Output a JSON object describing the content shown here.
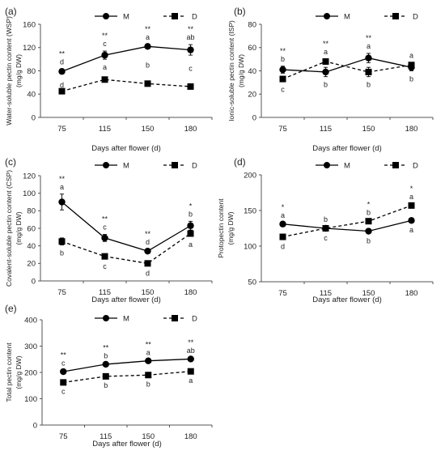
{
  "chart_data": [
    {
      "type": "line",
      "panel": "(a)",
      "ylabel": [
        "Water-soluble pectin content (WSP)",
        "(mg/g DW)"
      ],
      "xlabel": "Days after flower (d)",
      "categories": [
        "75",
        "115",
        "150",
        "180"
      ],
      "ylim": [
        0,
        160
      ],
      "yticks": [
        0,
        40,
        80,
        120,
        160
      ],
      "legend_position": "top-right",
      "series": [
        {
          "name": "M",
          "style": "solid",
          "marker": "circle",
          "values": [
            79,
            107,
            122,
            116
          ],
          "errors": [
            4,
            7,
            3,
            9
          ],
          "labels": [
            "d",
            "c",
            "a",
            "ab"
          ],
          "label_side": "above"
        },
        {
          "name": "D",
          "style": "dashed",
          "marker": "square",
          "values": [
            45,
            65,
            58,
            53
          ],
          "errors": [
            2,
            2,
            2,
            2
          ],
          "labels": [
            "d",
            "a",
            "b",
            "c"
          ],
          "label_side": "below_M"
        }
      ],
      "significance": [
        "**",
        "**",
        "**",
        "**"
      ]
    },
    {
      "type": "line",
      "panel": "(b)",
      "ylabel": [
        "Ionic-soluble pectin content (ISP)",
        "(mg/g DW)"
      ],
      "xlabel": "Days after flower (d)",
      "categories": [
        "75",
        "115",
        "150",
        "180"
      ],
      "ylim": [
        0,
        80
      ],
      "yticks": [
        0,
        20,
        40,
        60,
        80
      ],
      "legend_position": "top-right",
      "series": [
        {
          "name": "M",
          "style": "solid",
          "marker": "circle",
          "values": [
            41,
            39,
            51,
            43
          ],
          "errors": [
            3,
            4,
            4,
            3
          ],
          "labels": [
            "b",
            "b",
            "a",
            "b"
          ],
          "label_side": "mixed"
        },
        {
          "name": "D",
          "style": "dashed",
          "marker": "square",
          "values": [
            33,
            48,
            39,
            45
          ],
          "errors": [
            2,
            2,
            4,
            2
          ],
          "labels": [
            "c",
            "a",
            "b",
            "a"
          ],
          "label_side": "mixed"
        }
      ],
      "significance": [
        "**",
        "**",
        "**",
        ""
      ]
    },
    {
      "type": "line",
      "panel": "(c)",
      "ylabel": [
        "Covalent-soluble pectin content (CSP)",
        "(mg/g DW)"
      ],
      "xlabel": "Days after flower (d)",
      "categories": [
        "75",
        "115",
        "150",
        "180"
      ],
      "ylim": [
        0,
        120
      ],
      "yticks": [
        0,
        20,
        40,
        60,
        80,
        100,
        120
      ],
      "legend_position": "top-right",
      "series": [
        {
          "name": "M",
          "style": "solid",
          "marker": "circle",
          "values": [
            90,
            49,
            34,
            63
          ],
          "errors": [
            9,
            4,
            2,
            5
          ],
          "labels": [
            "a",
            "c",
            "d",
            "b"
          ],
          "label_side": "above"
        },
        {
          "name": "D",
          "style": "dashed",
          "marker": "square",
          "values": [
            45,
            28,
            20,
            54
          ],
          "errors": [
            4,
            2,
            2,
            3
          ],
          "labels": [
            "b",
            "c",
            "d",
            "a"
          ],
          "label_side": "below"
        }
      ],
      "significance": [
        "**",
        "**",
        "**",
        "*"
      ]
    },
    {
      "type": "line",
      "panel": "(d)",
      "ylabel": [
        "Protopectin content",
        "(mg/g DW)"
      ],
      "xlabel": "Days after flower (d)",
      "categories": [
        "75",
        "115",
        "150",
        "180"
      ],
      "ylim": [
        50,
        200
      ],
      "yticks": [
        50,
        100,
        150,
        200
      ],
      "legend_position": "top-right",
      "series": [
        {
          "name": "M",
          "style": "solid",
          "marker": "circle",
          "values": [
            131,
            125,
            121,
            136
          ],
          "errors": [
            2,
            2,
            2,
            2
          ],
          "labels": [
            "a",
            "b",
            "b",
            "a"
          ],
          "label_side": "mixed"
        },
        {
          "name": "D",
          "style": "dashed",
          "marker": "square",
          "values": [
            113,
            125,
            135,
            157
          ],
          "errors": [
            2,
            2,
            2,
            2
          ],
          "labels": [
            "d",
            "c",
            "b",
            "a"
          ],
          "label_side": "mixed"
        }
      ],
      "significance": [
        "*",
        "",
        "*",
        "*"
      ]
    },
    {
      "type": "line",
      "panel": "(e)",
      "ylabel": [
        "Total pectin content",
        "(mg/g DW)"
      ],
      "xlabel": "Days after flower (d)",
      "categories": [
        "75",
        "115",
        "150",
        "180"
      ],
      "ylim": [
        0,
        400
      ],
      "yticks": [
        0,
        100,
        200,
        300,
        400
      ],
      "legend_position": "top-right",
      "series": [
        {
          "name": "M",
          "style": "solid",
          "marker": "circle",
          "values": [
            203,
            231,
            244,
            251
          ],
          "errors": [
            4,
            4,
            4,
            4
          ],
          "labels": [
            "c",
            "b",
            "a",
            "ab"
          ],
          "label_side": "above"
        },
        {
          "name": "D",
          "style": "dashed",
          "marker": "square",
          "values": [
            162,
            185,
            190,
            204
          ],
          "errors": [
            4,
            4,
            4,
            4
          ],
          "labels": [
            "c",
            "b",
            "b",
            "a"
          ],
          "label_side": "below"
        }
      ],
      "significance": [
        "**",
        "**",
        "**",
        "**"
      ]
    }
  ]
}
